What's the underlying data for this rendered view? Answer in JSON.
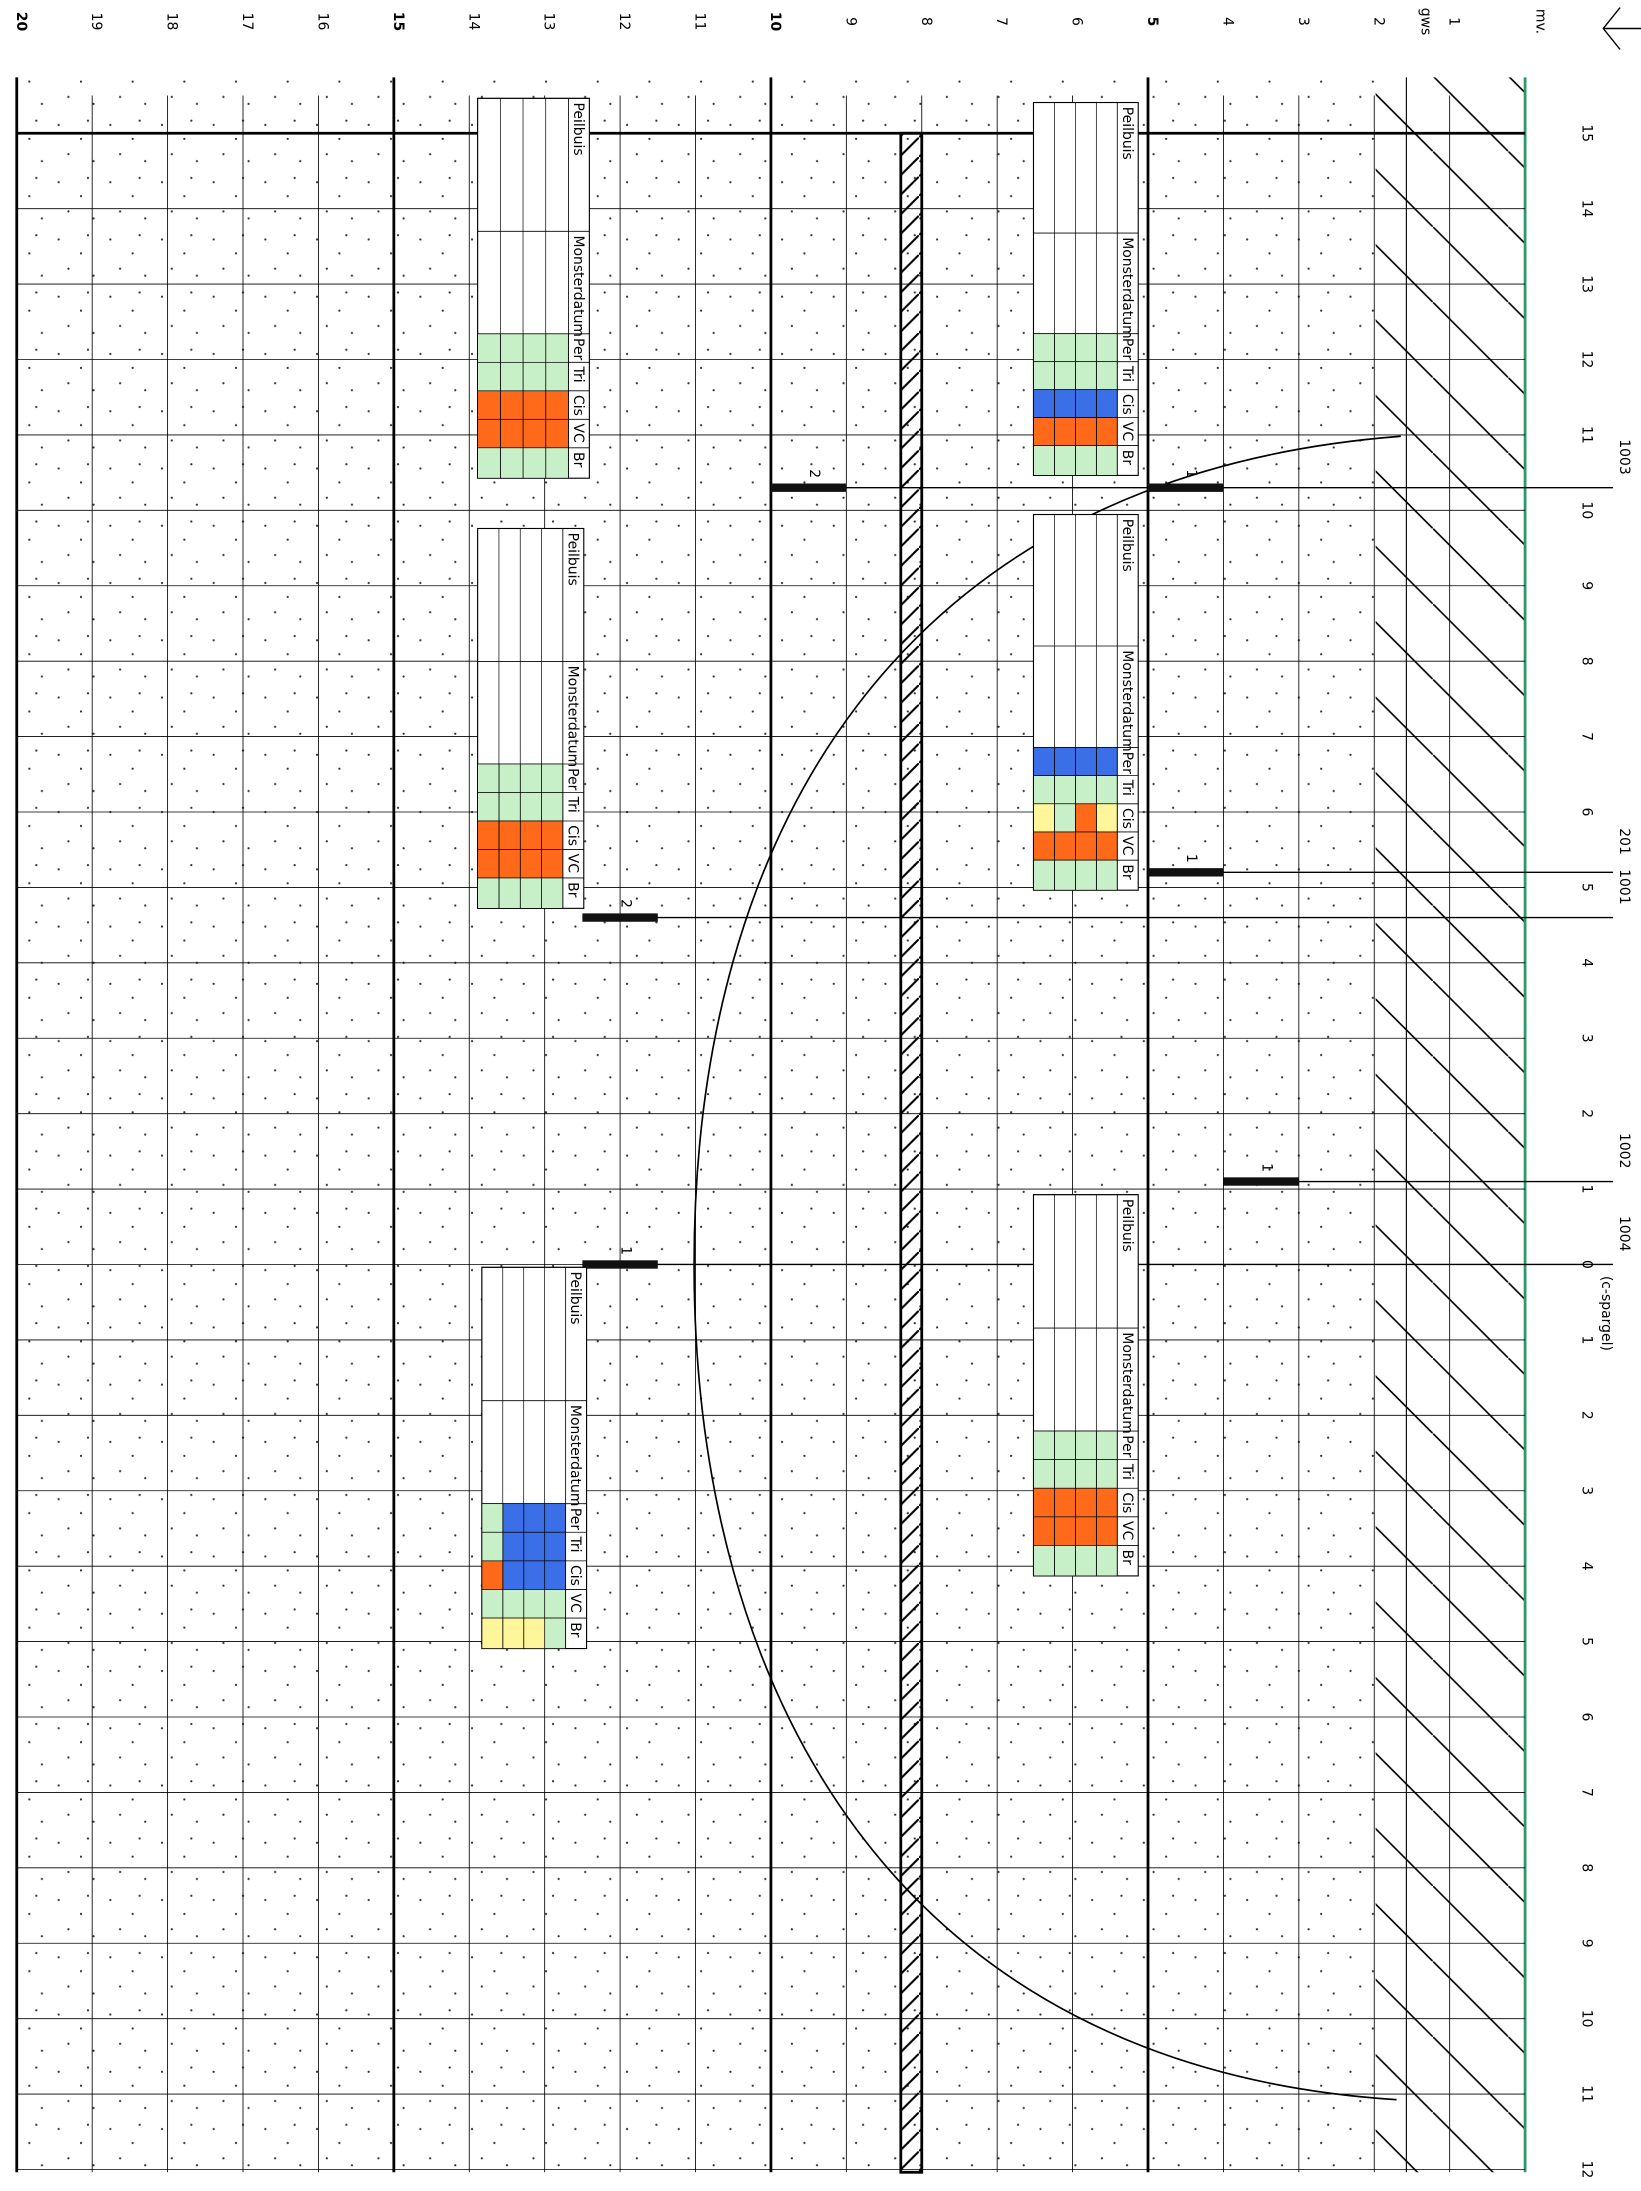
{
  "drawing": {
    "origin_label": "mv.",
    "gws_label": "gws",
    "depth_ticks": [
      1,
      2,
      3,
      4,
      5,
      6,
      7,
      8,
      9,
      10,
      11,
      12,
      13,
      14,
      15,
      16,
      17,
      18,
      19,
      20
    ],
    "position_ticks": [
      {
        "value": -15,
        "label": "15"
      },
      {
        "value": -14,
        "label": "14"
      },
      {
        "value": -13,
        "label": "13"
      },
      {
        "value": -12,
        "label": "12"
      },
      {
        "value": -11,
        "label": "11"
      },
      {
        "value": -10,
        "label": "10"
      },
      {
        "value": -9,
        "label": "9"
      },
      {
        "value": -8,
        "label": "8"
      },
      {
        "value": -7,
        "label": "7"
      },
      {
        "value": -6,
        "label": "6"
      },
      {
        "value": -5,
        "label": "5"
      },
      {
        "value": -4,
        "label": "4"
      },
      {
        "value": -3,
        "label": "3"
      },
      {
        "value": -2,
        "label": "2"
      },
      {
        "value": -1,
        "label": "1"
      },
      0,
      1,
      2,
      3,
      4,
      5,
      6,
      7,
      8,
      9,
      10,
      11,
      12
    ],
    "borings": [
      {
        "name": "1003",
        "position": -10.3,
        "filters": [
          {
            "label": "1",
            "top": 4,
            "bottom": 5
          },
          {
            "label": "2",
            "top": 9,
            "bottom": 10
          }
        ]
      },
      {
        "name": "201",
        "position": -5.2,
        "filters": [
          {
            "label": "1",
            "top": 4,
            "bottom": 5
          }
        ]
      },
      {
        "name": "1001",
        "position": -4.6,
        "filters": [
          {
            "label": "2",
            "top": 11.5,
            "bottom": 12.5
          }
        ]
      },
      {
        "name": "1002",
        "position": -1.1,
        "filters": [
          {
            "label": "1",
            "top": 3,
            "bottom": 4
          }
        ]
      },
      {
        "name": "1004",
        "position": 0,
        "filters": [
          {
            "label": "1",
            "top": 11.5,
            "bottom": 12.5
          }
        ]
      }
    ],
    "sparge_label": "(c-spargel)",
    "table_headers": [
      "Peilbuis",
      "Monsterdatum",
      "Per",
      "Tri",
      "Cis",
      "VC",
      "Br"
    ],
    "tables": [
      {
        "colors": [
          [
            "#c8f0c8",
            "#c8f0c8",
            "#3a6fe8",
            "#ff6a1a",
            "#c8f0c8"
          ],
          [
            "#c8f0c8",
            "#c8f0c8",
            "#3a6fe8",
            "#ff6a1a",
            "#c8f0c8"
          ],
          [
            "#c8f0c8",
            "#c8f0c8",
            "#3a6fe8",
            "#ff6a1a",
            "#c8f0c8"
          ],
          [
            "#c8f0c8",
            "#c8f0c8",
            "#3a6fe8",
            "#ff6a1a",
            "#c8f0c8"
          ]
        ]
      },
      {
        "colors": [
          [
            "#3a6fe8",
            "#c8f0c8",
            "#fff59a",
            "#ff6a1a",
            "#c8f0c8"
          ],
          [
            "#3a6fe8",
            "#c8f0c8",
            "#ff6a1a",
            "#ff6a1a",
            "#c8f0c8"
          ],
          [
            "#3a6fe8",
            "#c8f0c8",
            "#c8f0c8",
            "#ff6a1a",
            "#c8f0c8"
          ],
          [
            "#3a6fe8",
            "#c8f0c8",
            "#fff59a",
            "#ff6a1a",
            "#c8f0c8"
          ]
        ]
      },
      {
        "colors": [
          [
            "#c8f0c8",
            "#c8f0c8",
            "#ff6a1a",
            "#ff6a1a",
            "#c8f0c8"
          ],
          [
            "#c8f0c8",
            "#c8f0c8",
            "#ff6a1a",
            "#ff6a1a",
            "#c8f0c8"
          ],
          [
            "#c8f0c8",
            "#c8f0c8",
            "#ff6a1a",
            "#ff6a1a",
            "#c8f0c8"
          ],
          [
            "#c8f0c8",
            "#c8f0c8",
            "#ff6a1a",
            "#ff6a1a",
            "#c8f0c8"
          ]
        ]
      },
      {
        "colors": [
          [
            "#c8f0c8",
            "#c8f0c8",
            "#ff6a1a",
            "#ff6a1a",
            "#c8f0c8"
          ],
          [
            "#c8f0c8",
            "#c8f0c8",
            "#ff6a1a",
            "#ff6a1a",
            "#c8f0c8"
          ],
          [
            "#c8f0c8",
            "#c8f0c8",
            "#ff6a1a",
            "#ff6a1a",
            "#c8f0c8"
          ],
          [
            "#c8f0c8",
            "#c8f0c8",
            "#ff6a1a",
            "#ff6a1a",
            "#c8f0c8"
          ]
        ]
      },
      {
        "colors": [
          [
            "#c8f0c8",
            "#c8f0c8",
            "#ff6a1a",
            "#ff6a1a",
            "#c8f0c8"
          ],
          [
            "#c8f0c8",
            "#c8f0c8",
            "#ff6a1a",
            "#ff6a1a",
            "#c8f0c8"
          ],
          [
            "#c8f0c8",
            "#c8f0c8",
            "#ff6a1a",
            "#ff6a1a",
            "#c8f0c8"
          ],
          [
            "#c8f0c8",
            "#c8f0c8",
            "#ff6a1a",
            "#ff6a1a",
            "#c8f0c8"
          ]
        ]
      },
      {
        "colors": [
          [
            "#3a6fe8",
            "#3a6fe8",
            "#3a6fe8",
            "#c8f0c8",
            "#c8f0c8"
          ],
          [
            "#3a6fe8",
            "#3a6fe8",
            "#3a6fe8",
            "#c8f0c8",
            "#fff59a"
          ],
          [
            "#3a6fe8",
            "#3a6fe8",
            "#3a6fe8",
            "#c8f0c8",
            "#fff59a"
          ],
          [
            "#c8f0c8",
            "#c8f0c8",
            "#ff6a1a",
            "#c8f0c8",
            "#fff59a"
          ]
        ]
      }
    ]
  }
}
